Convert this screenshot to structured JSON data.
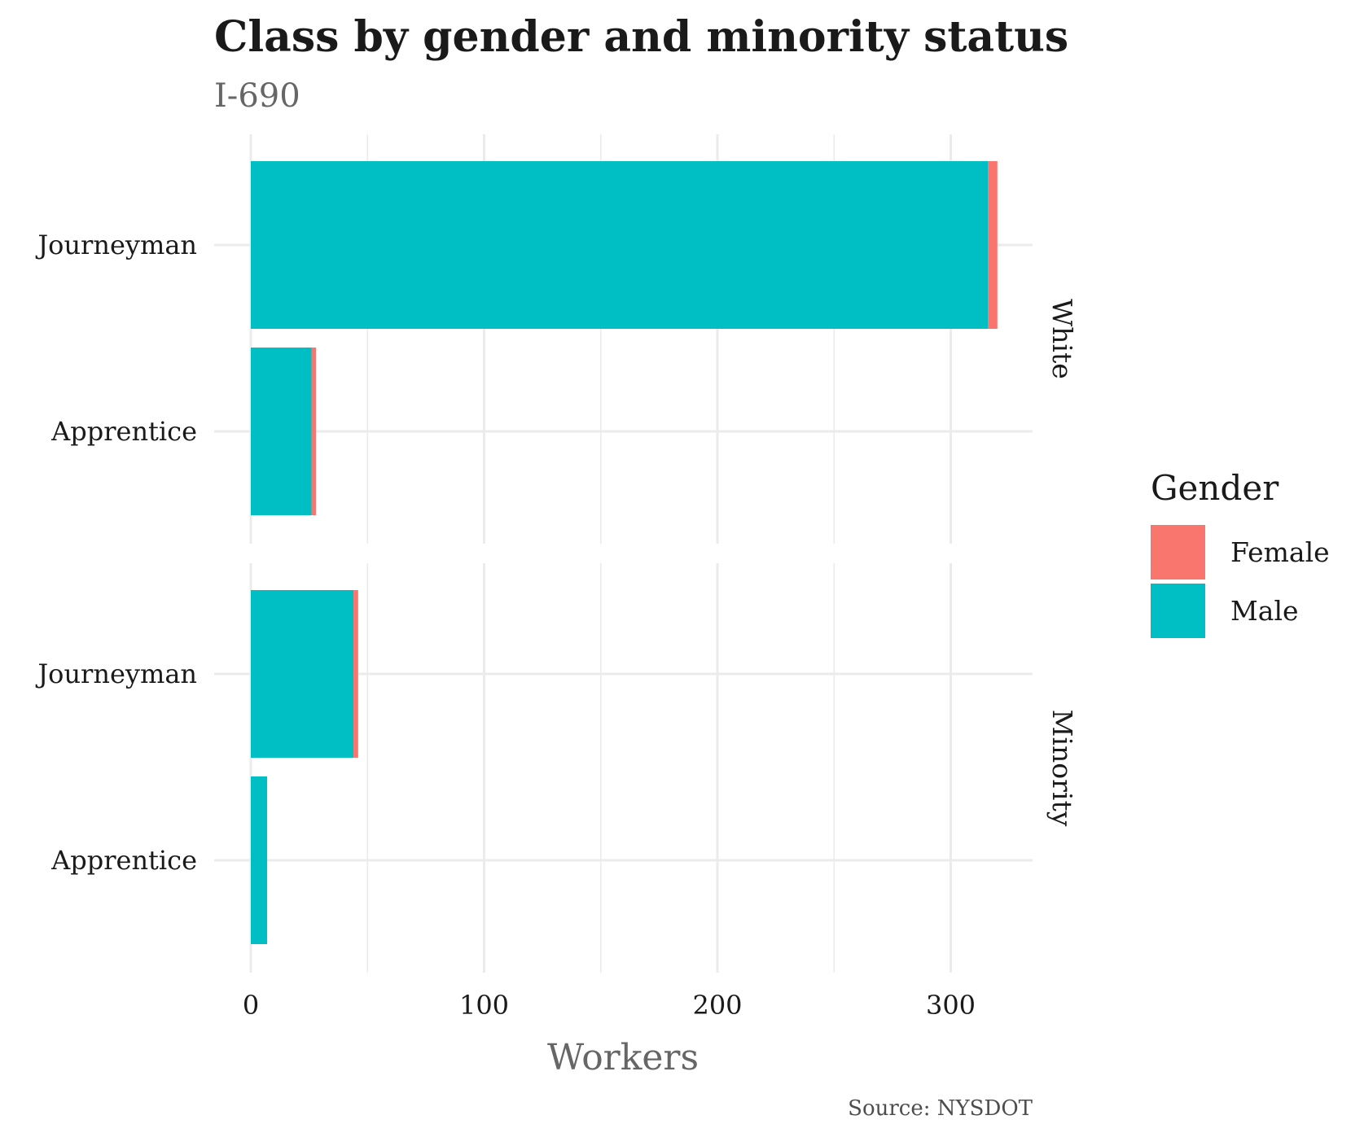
{
  "chart_data": {
    "type": "bar",
    "orientation": "horizontal",
    "stacked": true,
    "title": "Class by gender and minority status",
    "subtitle": "I-690",
    "xlabel": "Workers",
    "ylabel": "",
    "caption": "Source: NYSDOT",
    "xlim": [
      0,
      336
    ],
    "x_ticks": [
      "0",
      "100",
      "200",
      "300"
    ],
    "x_tick_values": [
      0,
      100,
      200,
      300
    ],
    "legend": {
      "title": "Gender",
      "position": "right",
      "entries": [
        "Female",
        "Male"
      ]
    },
    "colors": {
      "Female": "#F8766D",
      "Male": "#00BFC4"
    },
    "grid": true,
    "facets": [
      {
        "label": "White",
        "categories": [
          "Journeyman",
          "Apprentice"
        ],
        "series": [
          {
            "name": "Male",
            "values": [
              316,
              26
            ]
          },
          {
            "name": "Female",
            "values": [
              4,
              2
            ]
          }
        ]
      },
      {
        "label": "Minority",
        "categories": [
          "Journeyman",
          "Apprentice"
        ],
        "series": [
          {
            "name": "Male",
            "values": [
              44,
              7
            ]
          },
          {
            "name": "Female",
            "values": [
              2,
              0
            ]
          }
        ]
      }
    ]
  }
}
